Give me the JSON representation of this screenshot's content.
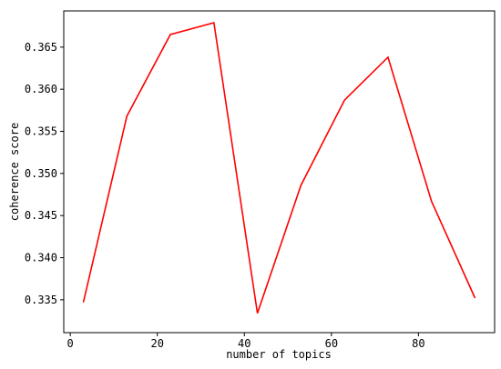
{
  "chart_data": {
    "type": "line",
    "x_label": "number of topics",
    "y_label": "coherence score",
    "x": [
      3,
      13,
      23,
      33,
      43,
      53,
      63,
      73,
      83,
      93
    ],
    "series": [
      {
        "color": "#ff0000",
        "values": [
          0.3347,
          0.3568,
          0.3665,
          0.3679,
          0.3334,
          0.3486,
          0.3587,
          0.3638,
          0.3467,
          0.3352
        ]
      }
    ],
    "xlim": [
      -1.5,
      97.5
    ],
    "ylim": [
      0.3311,
      0.3693
    ],
    "xticks": [
      0,
      20,
      40,
      60,
      80
    ],
    "yticks": [
      0.335,
      {
        "value": 0.34,
        "label": "0.340"
      },
      0.345,
      {
        "value": 0.35,
        "label": "0.350"
      },
      0.355,
      {
        "value": 0.36,
        "label": "0.360"
      },
      0.365
    ]
  }
}
